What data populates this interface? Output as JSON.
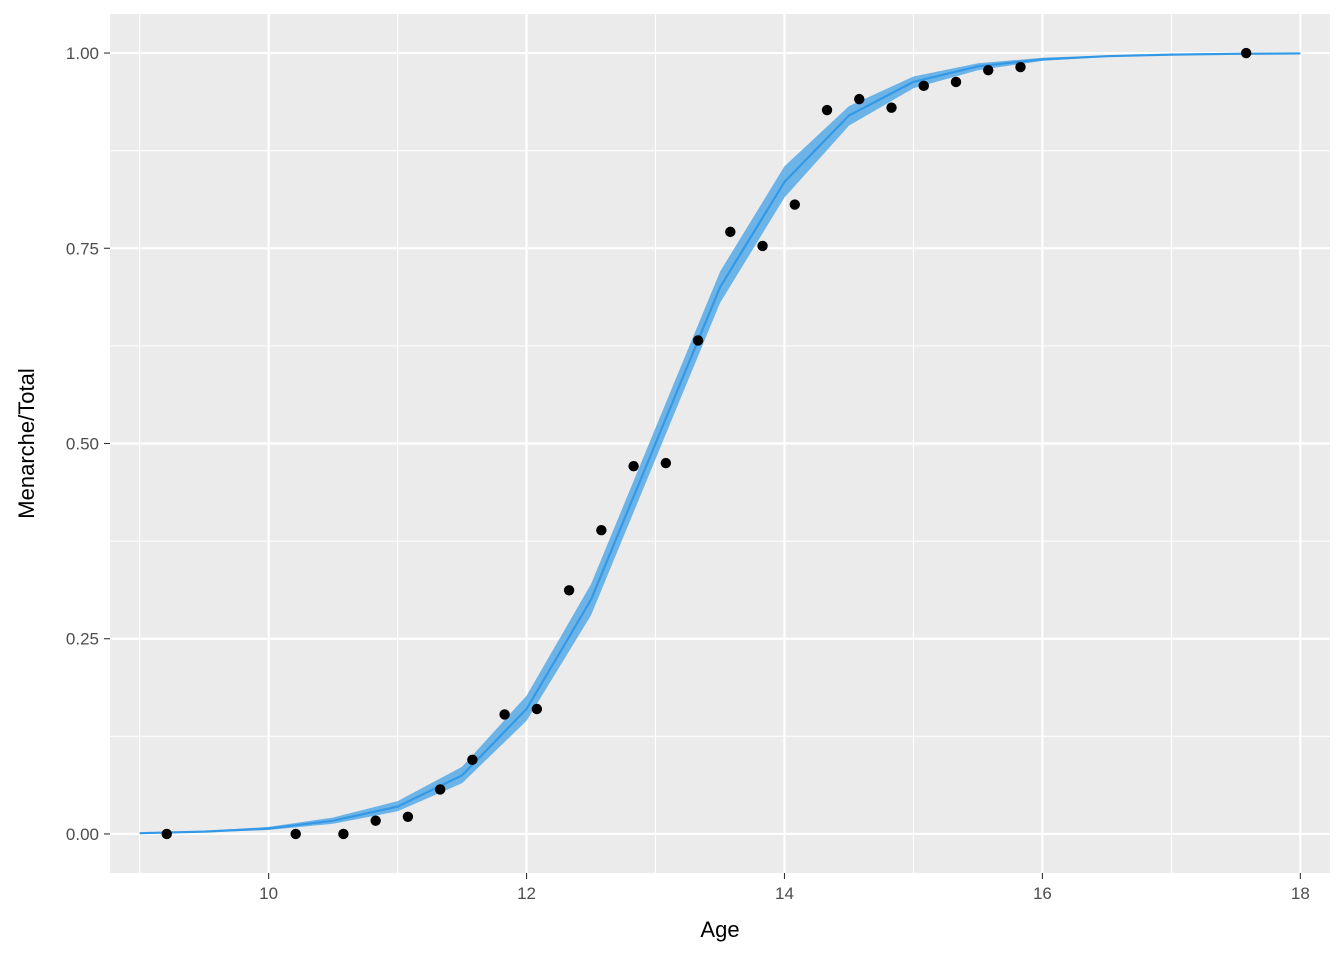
{
  "chart_data": {
    "type": "scatter",
    "title": "",
    "xlabel": "Age",
    "ylabel": "Menarche/Total",
    "xlim": [
      8.77,
      18.23
    ],
    "ylim": [
      -0.05,
      1.05
    ],
    "x_ticks": [
      10,
      12,
      14,
      16,
      18
    ],
    "x_tick_labels": [
      "10",
      "12",
      "14",
      "16",
      "18"
    ],
    "y_ticks": [
      0,
      0.25,
      0.5,
      0.75,
      1
    ],
    "y_tick_labels": [
      "0.00",
      "0.25",
      "0.50",
      "0.75",
      "1.00"
    ],
    "grid": true,
    "legend": "none",
    "colors": {
      "panel": "#ebebeb",
      "grid": "#ffffff",
      "points": "#000000",
      "fit_line": "#3399e6",
      "ribbon": "#56a9e8"
    },
    "points": {
      "x": [
        9.21,
        10.21,
        10.58,
        10.83,
        11.08,
        11.33,
        11.58,
        11.83,
        12.08,
        12.33,
        12.58,
        12.83,
        13.08,
        13.33,
        13.58,
        13.83,
        14.08,
        14.33,
        14.58,
        14.83,
        15.08,
        15.33,
        15.58,
        15.83,
        17.58
      ],
      "y": [
        0.0,
        0.0,
        0.0,
        0.017,
        0.022,
        0.057,
        0.095,
        0.153,
        0.16,
        0.312,
        0.389,
        0.471,
        0.475,
        0.632,
        0.771,
        0.753,
        0.806,
        0.927,
        0.941,
        0.93,
        0.958,
        0.963,
        0.978,
        0.982,
        1.0
      ]
    },
    "fit": {
      "x": [
        9.0,
        9.5,
        10.0,
        10.5,
        11.0,
        11.5,
        12.0,
        12.5,
        13.0,
        13.5,
        14.0,
        14.5,
        15.0,
        15.5,
        16.0,
        16.5,
        17.0,
        17.5,
        18.0
      ],
      "y": [
        0.001,
        0.003,
        0.007,
        0.017,
        0.035,
        0.075,
        0.16,
        0.3,
        0.5,
        0.7,
        0.835,
        0.92,
        0.963,
        0.983,
        0.992,
        0.996,
        0.998,
        0.999,
        0.9995
      ],
      "lower": [
        0.0005,
        0.002,
        0.005,
        0.013,
        0.029,
        0.065,
        0.145,
        0.28,
        0.48,
        0.68,
        0.815,
        0.907,
        0.955,
        0.978,
        0.99,
        0.995,
        0.998,
        0.999,
        0.999
      ],
      "upper": [
        0.0015,
        0.004,
        0.009,
        0.021,
        0.042,
        0.086,
        0.177,
        0.32,
        0.52,
        0.72,
        0.855,
        0.932,
        0.97,
        0.987,
        0.994,
        0.997,
        0.999,
        1.0,
        1.0
      ]
    }
  }
}
